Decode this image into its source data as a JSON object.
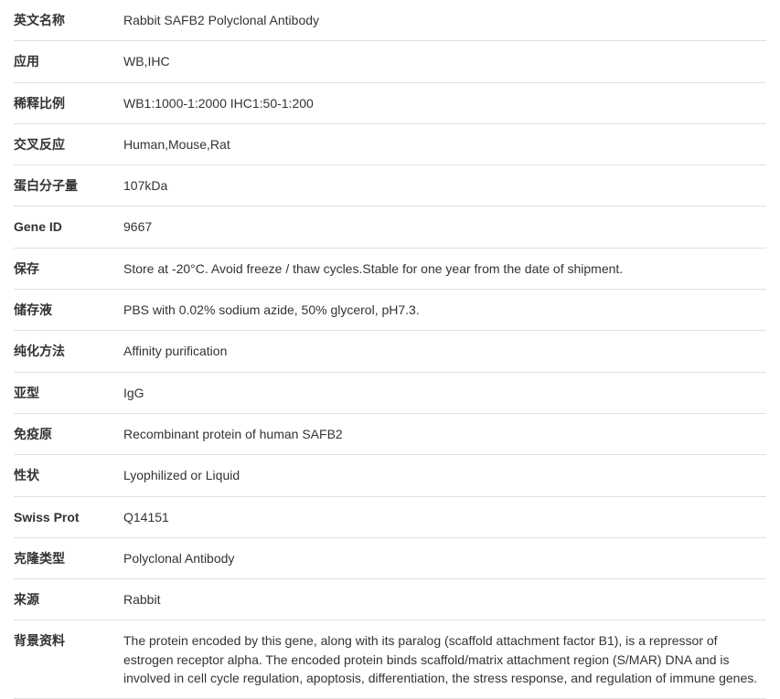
{
  "rows": [
    {
      "label": "英文名称",
      "value": "Rabbit SAFB2 Polyclonal Antibody"
    },
    {
      "label": "应用",
      "value": "WB,IHC"
    },
    {
      "label": "稀释比例",
      "value": "WB1:1000-1:2000 IHC1:50-1:200"
    },
    {
      "label": "交叉反应",
      "value": "Human,Mouse,Rat"
    },
    {
      "label": "蛋白分子量",
      "value": "107kDa"
    },
    {
      "label": "Gene ID",
      "value": "9667"
    },
    {
      "label": "保存",
      "value": "Store at -20°C. Avoid freeze / thaw cycles.Stable for one year from the date of shipment."
    },
    {
      "label": "储存液",
      "value": "PBS with 0.02% sodium azide, 50% glycerol, pH7.3."
    },
    {
      "label": "纯化方法",
      "value": "Affinity purification"
    },
    {
      "label": "亚型",
      "value": "IgG"
    },
    {
      "label": "免疫原",
      "value": "Recombinant protein of human SAFB2"
    },
    {
      "label": "性状",
      "value": "Lyophilized or Liquid"
    },
    {
      "label": "Swiss Prot",
      "value": "Q14151"
    },
    {
      "label": "克隆类型",
      "value": "Polyclonal Antibody"
    },
    {
      "label": "来源",
      "value": "Rabbit"
    },
    {
      "label": "背景资料",
      "value": "The protein encoded by this gene, along with its paralog (scaffold attachment factor B1), is a repressor of estrogen receptor alpha. The encoded protein binds scaffold/matrix attachment region (S/MAR) DNA and is involved in cell cycle regulation, apoptosis, differentiation, the stress response, and regulation of immune genes."
    }
  ]
}
